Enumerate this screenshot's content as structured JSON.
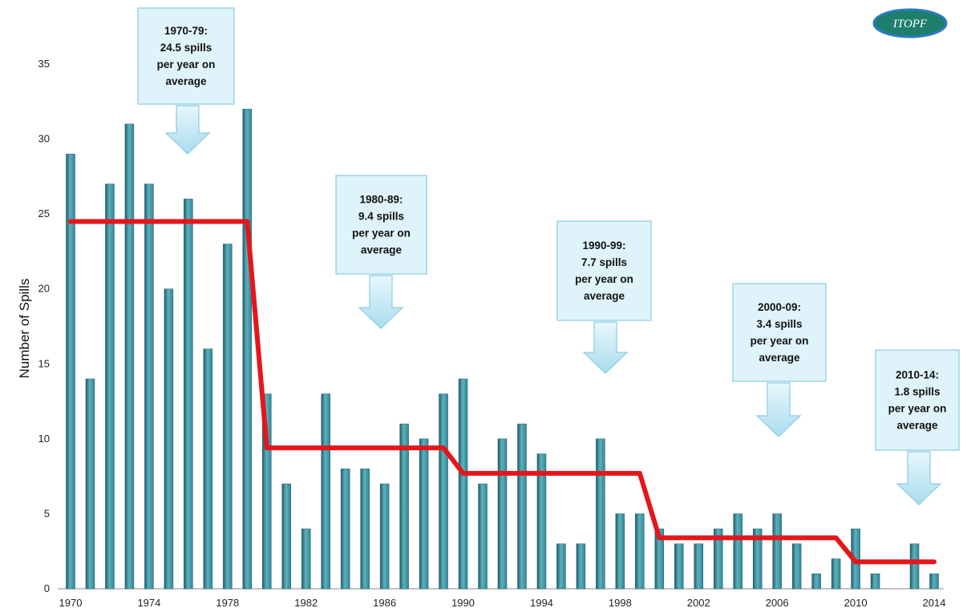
{
  "colors": {
    "bar": "#2f8796",
    "bar_dark": "#1d5f6b",
    "bar_light": "#5fb0bd",
    "average_line": "#e5161b",
    "callout_fill": "#dff3fa",
    "callout_stroke": "#8ccbe0",
    "arrow_fill": "#c8ebf6",
    "logo_fill": "#1e7e6c",
    "logo_stroke": "#2a7bbf",
    "axis": "#888888"
  },
  "logo": {
    "text": "ITOPF"
  },
  "chart_data": {
    "type": "bar",
    "x": [
      1970,
      1971,
      1972,
      1973,
      1974,
      1975,
      1976,
      1977,
      1978,
      1979,
      1980,
      1981,
      1982,
      1983,
      1984,
      1985,
      1986,
      1987,
      1988,
      1989,
      1990,
      1991,
      1992,
      1993,
      1994,
      1995,
      1996,
      1997,
      1998,
      1999,
      2000,
      2001,
      2002,
      2003,
      2004,
      2005,
      2006,
      2007,
      2008,
      2009,
      2010,
      2011,
      2012,
      2013,
      2014
    ],
    "values": [
      29,
      14,
      27,
      31,
      27,
      20,
      26,
      16,
      23,
      32,
      13,
      7,
      4,
      13,
      8,
      8,
      7,
      11,
      10,
      13,
      14,
      7,
      10,
      11,
      9,
      3,
      3,
      10,
      5,
      5,
      4,
      3,
      3,
      4,
      5,
      4,
      5,
      3,
      1,
      2,
      4,
      1,
      0,
      3,
      1
    ],
    "xlim": [
      1970,
      2014
    ],
    "ylim": [
      0,
      35
    ],
    "yticks": [
      0,
      5,
      10,
      15,
      20,
      25,
      30,
      35
    ],
    "xticks": [
      1970,
      1974,
      1978,
      1982,
      1986,
      1990,
      1994,
      1998,
      2002,
      2006,
      2010,
      2014
    ],
    "ylabel": "Number of Spills",
    "grid": false,
    "average_line": {
      "points": [
        [
          1970,
          24.5
        ],
        [
          1979,
          24.5
        ],
        [
          1980,
          9.4
        ],
        [
          1989,
          9.4
        ],
        [
          1990,
          7.7
        ],
        [
          1999,
          7.7
        ],
        [
          2000,
          3.4
        ],
        [
          2009,
          3.4
        ],
        [
          2010,
          1.8
        ],
        [
          2014,
          1.8
        ]
      ]
    },
    "annotations": [
      {
        "lines": [
          "1970-79:",
          "24.5 spills",
          "per year on",
          "average"
        ]
      },
      {
        "lines": [
          "1980-89:",
          "9.4 spills",
          "per year on",
          "average"
        ]
      },
      {
        "lines": [
          "1990-99:",
          "7.7 spills",
          "per year on",
          "average"
        ]
      },
      {
        "lines": [
          "2000-09:",
          "3.4 spills",
          "per year on",
          "average"
        ]
      },
      {
        "lines": [
          "2010-14:",
          "1.8 spills",
          "per year on",
          "average"
        ]
      }
    ]
  }
}
